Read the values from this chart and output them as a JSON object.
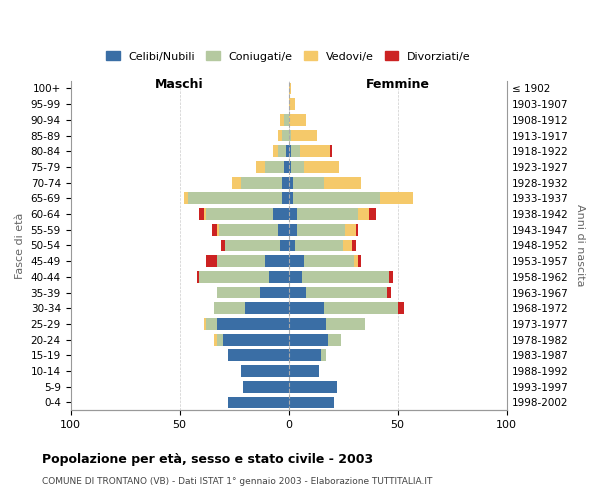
{
  "age_groups": [
    "0-4",
    "5-9",
    "10-14",
    "15-19",
    "20-24",
    "25-29",
    "30-34",
    "35-39",
    "40-44",
    "45-49",
    "50-54",
    "55-59",
    "60-64",
    "65-69",
    "70-74",
    "75-79",
    "80-84",
    "85-89",
    "90-94",
    "95-99",
    "100+"
  ],
  "birth_years": [
    "1998-2002",
    "1993-1997",
    "1988-1992",
    "1983-1987",
    "1978-1982",
    "1973-1977",
    "1968-1972",
    "1963-1967",
    "1958-1962",
    "1953-1957",
    "1948-1952",
    "1943-1947",
    "1938-1942",
    "1933-1937",
    "1928-1932",
    "1923-1927",
    "1918-1922",
    "1913-1917",
    "1908-1912",
    "1903-1907",
    "≤ 1902"
  ],
  "maschi": {
    "celibi": [
      28,
      21,
      22,
      28,
      30,
      33,
      20,
      13,
      9,
      11,
      4,
      5,
      7,
      3,
      3,
      2,
      1,
      0,
      0,
      0,
      0
    ],
    "coniugati": [
      0,
      0,
      0,
      0,
      3,
      5,
      14,
      20,
      32,
      22,
      25,
      27,
      31,
      43,
      19,
      9,
      4,
      3,
      2,
      0,
      0
    ],
    "vedovi": [
      0,
      0,
      0,
      0,
      1,
      1,
      0,
      0,
      0,
      0,
      0,
      1,
      1,
      2,
      4,
      4,
      2,
      2,
      2,
      0,
      0
    ],
    "divorziati": [
      0,
      0,
      0,
      0,
      0,
      0,
      0,
      0,
      1,
      5,
      2,
      2,
      2,
      0,
      0,
      0,
      0,
      0,
      0,
      0,
      0
    ]
  },
  "femmine": {
    "nubili": [
      21,
      22,
      14,
      15,
      18,
      17,
      16,
      8,
      6,
      7,
      3,
      4,
      4,
      2,
      2,
      1,
      1,
      0,
      0,
      0,
      0
    ],
    "coniugate": [
      0,
      0,
      0,
      2,
      6,
      18,
      34,
      37,
      40,
      23,
      22,
      22,
      28,
      40,
      14,
      6,
      4,
      1,
      0,
      0,
      0
    ],
    "vedove": [
      0,
      0,
      0,
      0,
      0,
      0,
      0,
      0,
      0,
      2,
      4,
      5,
      5,
      15,
      17,
      16,
      14,
      12,
      8,
      3,
      1
    ],
    "divorziate": [
      0,
      0,
      0,
      0,
      0,
      0,
      3,
      2,
      2,
      1,
      2,
      1,
      3,
      0,
      0,
      0,
      1,
      0,
      0,
      0,
      0
    ]
  },
  "colors": {
    "celibi": "#3a6ea5",
    "coniugati": "#b5c9a0",
    "vedovi": "#f5c96a",
    "divorziati": "#cc2222"
  },
  "xlim": 100,
  "title": "Popolazione per età, sesso e stato civile - 2003",
  "subtitle": "COMUNE DI TRONTANO (VB) - Dati ISTAT 1° gennaio 2003 - Elaborazione TUTTITALIA.IT",
  "ylabel": "Fasce di età",
  "ylabel_right": "Anni di nascita",
  "legend_labels": [
    "Celibi/Nubili",
    "Coniugati/e",
    "Vedovi/e",
    "Divorziati/e"
  ],
  "maschi_label": "Maschi",
  "femmine_label": "Femmine",
  "background_color": "#ffffff",
  "grid_color": "#cccccc"
}
